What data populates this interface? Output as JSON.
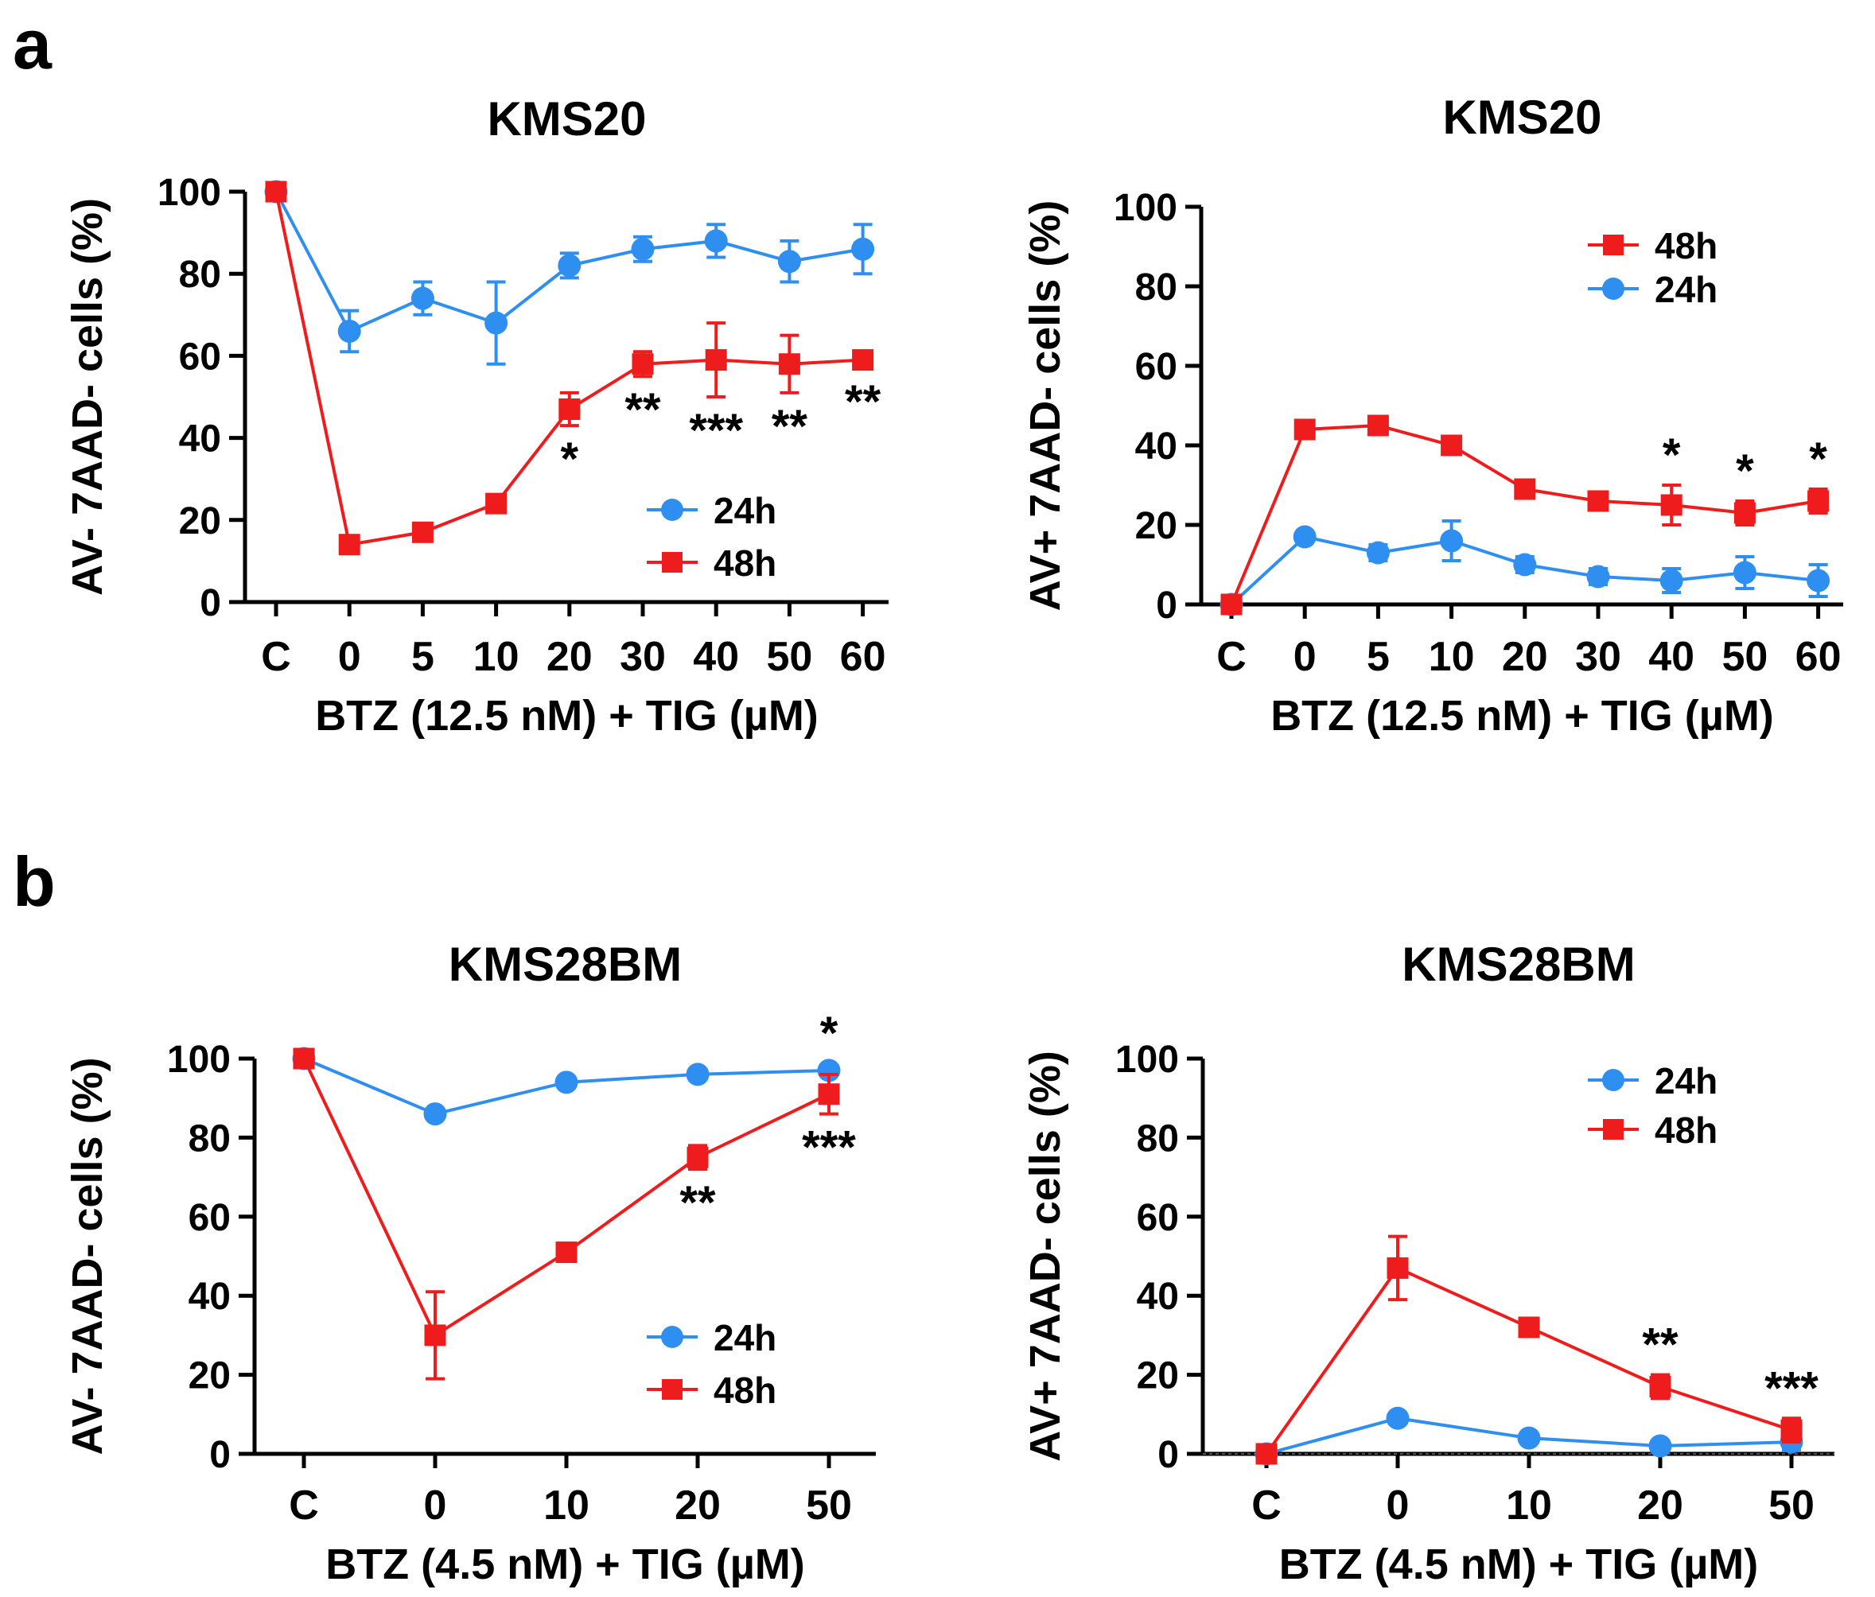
{
  "panels": [
    {
      "label": "a"
    },
    {
      "label": "b"
    }
  ],
  "colors": {
    "h24": "#2f8ff0",
    "h48": "#ee1c1c",
    "axis": "#000000"
  },
  "chart_data": [
    {
      "type": "line",
      "title": "KMS20",
      "ylabel": "AV- 7AAD- cells (%)",
      "xlabel": "BTZ (12.5 nM) + TIG (µM)",
      "categories": [
        "C",
        "0",
        "5",
        "10",
        "20",
        "30",
        "40",
        "50",
        "60"
      ],
      "ylim": [
        0,
        100
      ],
      "yticks": [
        "0",
        "20",
        "40",
        "60",
        "80",
        "100"
      ],
      "legend_position": "bottom-right",
      "legend_order": [
        "24h",
        "48h"
      ],
      "series": [
        {
          "name": "24h",
          "marker": "circle",
          "values": [
            100,
            66,
            74,
            68,
            82,
            86,
            88,
            83,
            86
          ],
          "errors": [
            1,
            5,
            4,
            10,
            3,
            3,
            4,
            5,
            6
          ]
        },
        {
          "name": "48h",
          "marker": "square",
          "values": [
            100,
            14,
            17,
            24,
            47,
            58,
            59,
            58,
            59
          ],
          "errors": [
            1,
            2,
            2,
            2,
            4,
            3,
            9,
            7,
            2
          ]
        }
      ],
      "annotations": [
        {
          "category": "20",
          "text": "*",
          "pos": "below"
        },
        {
          "category": "30",
          "text": "**",
          "pos": "below"
        },
        {
          "category": "40",
          "text": "***",
          "pos": "below"
        },
        {
          "category": "50",
          "text": "**",
          "pos": "below"
        },
        {
          "category": "60",
          "text": "**",
          "pos": "below"
        }
      ]
    },
    {
      "type": "line",
      "title": "KMS20",
      "ylabel": "AV+ 7AAD- cells (%)",
      "xlabel": "BTZ (12.5 nM) + TIG (µM)",
      "categories": [
        "C",
        "0",
        "5",
        "10",
        "20",
        "30",
        "40",
        "50",
        "60"
      ],
      "ylim": [
        0,
        100
      ],
      "yticks": [
        "0",
        "20",
        "40",
        "60",
        "80",
        "100"
      ],
      "legend_position": "top-right",
      "legend_order": [
        "48h",
        "24h"
      ],
      "series": [
        {
          "name": "24h",
          "marker": "circle",
          "values": [
            0,
            17,
            13,
            16,
            10,
            7,
            6,
            8,
            6
          ],
          "errors": [
            0.5,
            1,
            2,
            5,
            2,
            2,
            3,
            4,
            4
          ]
        },
        {
          "name": "48h",
          "marker": "square",
          "values": [
            0,
            44,
            45,
            40,
            29,
            26,
            25,
            23,
            26
          ],
          "errors": [
            0.5,
            1,
            1,
            2,
            2,
            2,
            5,
            3,
            3
          ]
        }
      ],
      "annotations": [
        {
          "category": "40",
          "text": "*",
          "pos": "above"
        },
        {
          "category": "50",
          "text": "*",
          "pos": "above"
        },
        {
          "category": "60",
          "text": "*",
          "pos": "above"
        }
      ]
    },
    {
      "type": "line",
      "title": "KMS28BM",
      "ylabel": "AV- 7AAD- cells (%)",
      "xlabel": "BTZ (4.5 nM) + TIG (µM)",
      "categories": [
        "C",
        "0",
        "10",
        "20",
        "50"
      ],
      "ylim": [
        0,
        100
      ],
      "yticks": [
        "0",
        "20",
        "40",
        "60",
        "80",
        "100"
      ],
      "legend_position": "bottom-right",
      "legend_order": [
        "24h",
        "48h"
      ],
      "series": [
        {
          "name": "24h",
          "marker": "circle",
          "values": [
            100,
            86,
            94,
            96,
            97
          ],
          "errors": [
            0.5,
            1,
            1,
            1,
            1
          ]
        },
        {
          "name": "48h",
          "marker": "square",
          "values": [
            100,
            30,
            51,
            75,
            91
          ],
          "errors": [
            1,
            11,
            1.5,
            3,
            5
          ]
        }
      ],
      "annotations": [
        {
          "category": "20",
          "text": "**",
          "pos": "below"
        },
        {
          "category": "50",
          "text": "***",
          "pos": "below"
        },
        {
          "category": "50",
          "text": "*",
          "pos": "top"
        }
      ]
    },
    {
      "type": "line",
      "title": "KMS28BM",
      "ylabel": "AV+ 7AAD- cells (%)",
      "xlabel": "BTZ (4.5 nM) + TIG (µM)",
      "categories": [
        "C",
        "0",
        "10",
        "20",
        "50"
      ],
      "ylim": [
        0,
        100
      ],
      "yticks": [
        "0",
        "20",
        "40",
        "60",
        "80",
        "100"
      ],
      "legend_position": "top-right",
      "legend_order": [
        "24h",
        "48h"
      ],
      "series": [
        {
          "name": "24h",
          "marker": "circle",
          "values": [
            0,
            9,
            4,
            2,
            3
          ],
          "errors": [
            0.5,
            1,
            1,
            1,
            2
          ]
        },
        {
          "name": "48h",
          "marker": "square",
          "values": [
            0,
            47,
            32,
            17,
            6
          ],
          "errors": [
            0.5,
            8,
            2,
            3,
            3
          ]
        }
      ],
      "annotations": [
        {
          "category": "20",
          "text": "**",
          "pos": "above"
        },
        {
          "category": "50",
          "text": "***",
          "pos": "above"
        }
      ]
    }
  ]
}
